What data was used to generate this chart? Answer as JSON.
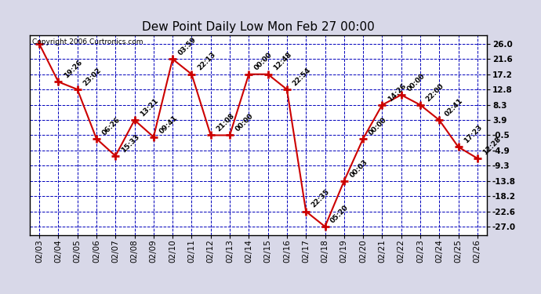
{
  "title": "Dew Point Daily Low Mon Feb 27 00:00",
  "copyright": "Copyright 2006 Curtronics.com",
  "dates": [
    "02/03",
    "02/04",
    "02/05",
    "02/06",
    "02/07",
    "02/08",
    "02/09",
    "02/10",
    "02/11",
    "02/12",
    "02/13",
    "02/14",
    "02/15",
    "02/16",
    "02/17",
    "02/18",
    "02/19",
    "02/20",
    "02/21",
    "02/22",
    "02/23",
    "02/24",
    "02/25",
    "02/26"
  ],
  "values": [
    26.0,
    15.0,
    12.8,
    -1.5,
    -6.5,
    3.9,
    -1.0,
    21.6,
    17.2,
    -0.5,
    -0.5,
    17.2,
    17.2,
    12.8,
    -22.6,
    -27.0,
    -13.8,
    -1.5,
    8.3,
    11.2,
    8.3,
    3.9,
    -3.9,
    -7.2
  ],
  "labels": [
    "",
    "19:26",
    "23:02",
    "06:26",
    "15:33",
    "13:21",
    "09:41",
    "03:59",
    "22:13",
    "21:08",
    "00:00",
    "00:00",
    "12:48",
    "22:54",
    "22:35",
    "05:20",
    "00:03",
    "00:00",
    "14:26",
    "00:00",
    "22:00",
    "02:41",
    "17:23",
    "12:28"
  ],
  "ytick_vals": [
    26.0,
    21.6,
    17.2,
    12.8,
    8.3,
    3.9,
    -0.5,
    -4.9,
    -9.3,
    -13.8,
    -18.2,
    -22.6,
    -27.0
  ],
  "ytick_labels": [
    "26.0",
    "21.6",
    "17.2",
    "12.8",
    "8.3",
    "3.9",
    "-0.5",
    "-4.9",
    "-9.3",
    "-13.8",
    "-18.2",
    "-22.6",
    "-27.0"
  ],
  "ylim": [
    -29.5,
    28.5
  ],
  "line_color": "#cc0000",
  "bg_color": "#d8d8e8",
  "plot_bg_color": "#ffffff",
  "grid_color": "#0000bb",
  "title_fontsize": 11,
  "label_fontsize": 6.5,
  "tick_fontsize": 7.5
}
